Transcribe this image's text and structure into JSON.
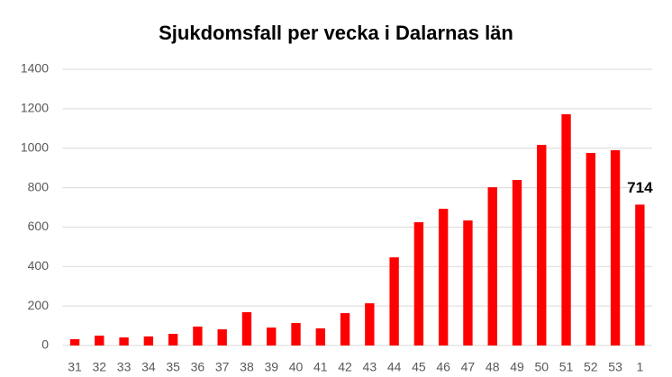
{
  "chart_data": {
    "type": "bar",
    "title": "Sjukdomsfall per vecka i Dalarnas län",
    "categories": [
      "31",
      "32",
      "33",
      "34",
      "35",
      "36",
      "37",
      "38",
      "39",
      "40",
      "41",
      "42",
      "43",
      "44",
      "45",
      "46",
      "47",
      "48",
      "49",
      "50",
      "51",
      "52",
      "53",
      "1"
    ],
    "values": [
      32,
      50,
      41,
      46,
      59,
      96,
      82,
      169,
      91,
      114,
      87,
      164,
      214,
      447,
      625,
      693,
      634,
      802,
      839,
      1017,
      1172,
      976,
      990,
      714
    ],
    "color": "#ff0000",
    "ylim": [
      0,
      1400
    ],
    "yticks": [
      0,
      200,
      400,
      600,
      800,
      1000,
      1200,
      1400
    ],
    "grid": true,
    "label_last": true
  }
}
